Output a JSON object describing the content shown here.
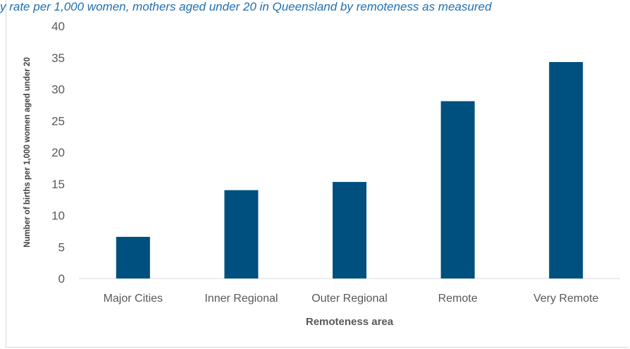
{
  "chart_data": {
    "type": "bar",
    "title": "y rate per 1,000 women, mothers aged under 20 in Queensland by remoteness as measured",
    "xlabel": "Remoteness area",
    "ylabel": "Number of births per 1,000 women aged under 20",
    "categories": [
      "Major Cities",
      "Inner Regional",
      "Outer Regional",
      "Remote",
      "Very Remote"
    ],
    "values": [
      6.6,
      14.0,
      15.3,
      28.1,
      34.3
    ],
    "ylim": [
      0,
      40
    ],
    "yticks": [
      "0",
      "5",
      "10",
      "15",
      "20",
      "25",
      "30",
      "35",
      "40"
    ],
    "bar_color": "#00507f",
    "grid": false,
    "legend": "none"
  }
}
